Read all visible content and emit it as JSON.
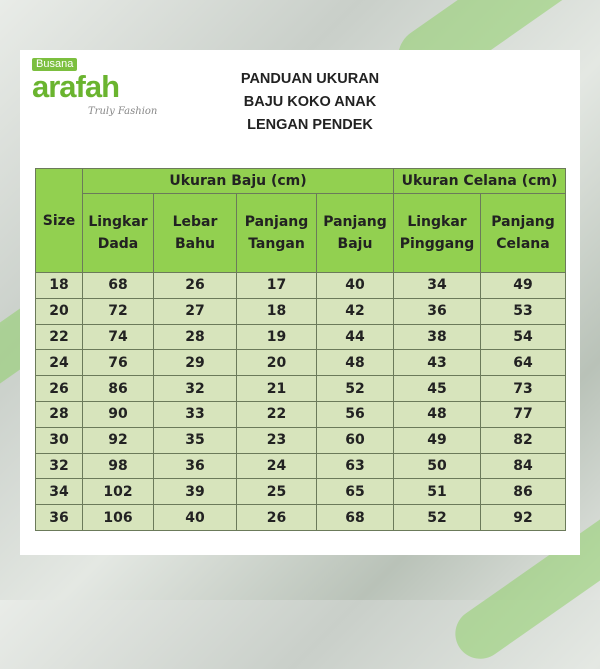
{
  "logo": {
    "badge": "Busana",
    "brand": "arafah",
    "tagline": "Truly Fashion"
  },
  "title": [
    "PANDUAN UKURAN",
    "BAJU KOKO ANAK",
    "LENGAN PENDEK"
  ],
  "table": {
    "size_header": "Size",
    "group_headers": [
      "Ukuran Baju (cm)",
      "Ukuran Celana (cm)"
    ],
    "columns": [
      [
        "Lingkar",
        "Dada"
      ],
      [
        "Lebar",
        "Bahu"
      ],
      [
        "Panjang",
        "Tangan"
      ],
      [
        "Panjang",
        "Baju"
      ],
      [
        "Lingkar",
        "Pinggang"
      ],
      [
        "Panjang",
        "Celana"
      ]
    ],
    "rows": [
      [
        "18",
        "68",
        "26",
        "17",
        "40",
        "34",
        "49"
      ],
      [
        "20",
        "72",
        "27",
        "18",
        "42",
        "36",
        "53"
      ],
      [
        "22",
        "74",
        "28",
        "19",
        "44",
        "38",
        "54"
      ],
      [
        "24",
        "76",
        "29",
        "20",
        "48",
        "43",
        "64"
      ],
      [
        "26",
        "86",
        "32",
        "21",
        "52",
        "45",
        "73"
      ],
      [
        "28",
        "90",
        "33",
        "22",
        "56",
        "48",
        "77"
      ],
      [
        "30",
        "92",
        "35",
        "23",
        "60",
        "49",
        "82"
      ],
      [
        "32",
        "98",
        "36",
        "24",
        "63",
        "50",
        "84"
      ],
      [
        "34",
        "102",
        "39",
        "25",
        "65",
        "51",
        "86"
      ],
      [
        "36",
        "106",
        "40",
        "26",
        "68",
        "52",
        "92"
      ]
    ]
  },
  "colors": {
    "header": "#92d050",
    "cell": "#d7e4bc",
    "brand": "#6ab42f"
  }
}
